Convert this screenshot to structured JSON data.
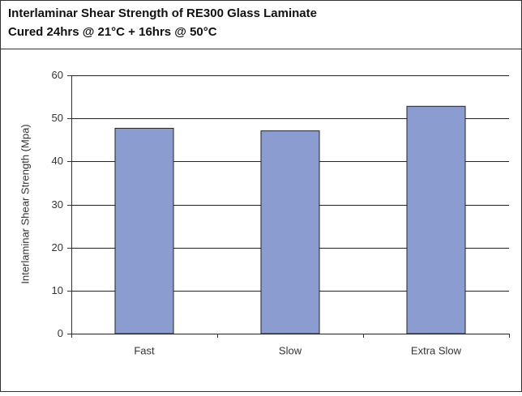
{
  "chart_data": {
    "type": "bar",
    "title": "Interlaminar Shear Strength of RE300 Glass Laminate",
    "subtitle": "Cured 24hrs @ 21°C + 16hrs @ 50°C",
    "y_label": "Interlaminar Shear Strength (Mpa)",
    "categories": [
      "Fast",
      "Slow",
      "Extra Slow"
    ],
    "values": [
      47.7,
      47.1,
      52.8
    ],
    "color": "#8b9dd0",
    "ylim": [
      0,
      60
    ],
    "yticks": [
      0,
      10,
      20,
      30,
      40,
      50,
      60
    ],
    "grid": true
  }
}
